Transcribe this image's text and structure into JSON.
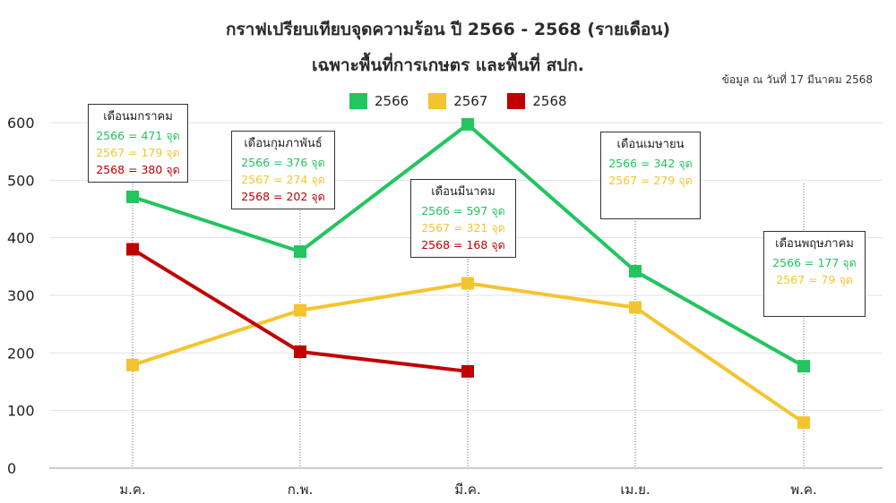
{
  "title_line1": "กราฟเปรียบเทียบจุดความร้อน ปี 2566 - 2568 (รายเดือน)",
  "title_line2": "เฉพาะพื้นที่การเกษตร และพื้นที่ สปก.",
  "note": "ข้อมูล ณ วันที่ 17 มีนาคม 2568",
  "colors": {
    "2566": "#22c55e",
    "2567": "#f4c430",
    "2568": "#c00000"
  },
  "chart_data": {
    "type": "line",
    "categories": [
      "ม.ค.",
      "ก.พ.",
      "มี.ค.",
      "เม.ย.",
      "พ.ค."
    ],
    "ylim": [
      0,
      600
    ],
    "yticks": [
      0,
      100,
      200,
      300,
      400,
      500,
      600
    ],
    "grid": true,
    "legend_position": "top-center",
    "series": [
      {
        "name": "2566",
        "values": [
          471,
          376,
          597,
          342,
          177
        ]
      },
      {
        "name": "2567",
        "values": [
          179,
          274,
          321,
          279,
          79
        ]
      },
      {
        "name": "2568",
        "values": [
          380,
          202,
          168,
          null,
          null
        ]
      }
    ]
  },
  "callouts": [
    {
      "head": "เดือนมกราคม",
      "lines": [
        "2566 = 471 จุด",
        "2567 = 179 จุด",
        "2568 = 380 จุด"
      ]
    },
    {
      "head": "เดือนกุมภาพันธ์",
      "lines": [
        "2566 = 376 จุด",
        "2567 = 274 จุด",
        "2568 = 202 จุด"
      ]
    },
    {
      "head": "เดือนมีนาคม",
      "lines": [
        "2566 = 597 จุด",
        "2567 = 321 จุด",
        "2568 = 168 จุด"
      ]
    },
    {
      "head": "เดือนเมษายน",
      "lines": [
        "2566 = 342 จุด",
        "2567 = 279 จุด"
      ]
    },
    {
      "head": "เดือนพฤษภาคม",
      "lines": [
        "2566 = 177 จุด",
        "2567 = 79 จุด"
      ]
    }
  ]
}
